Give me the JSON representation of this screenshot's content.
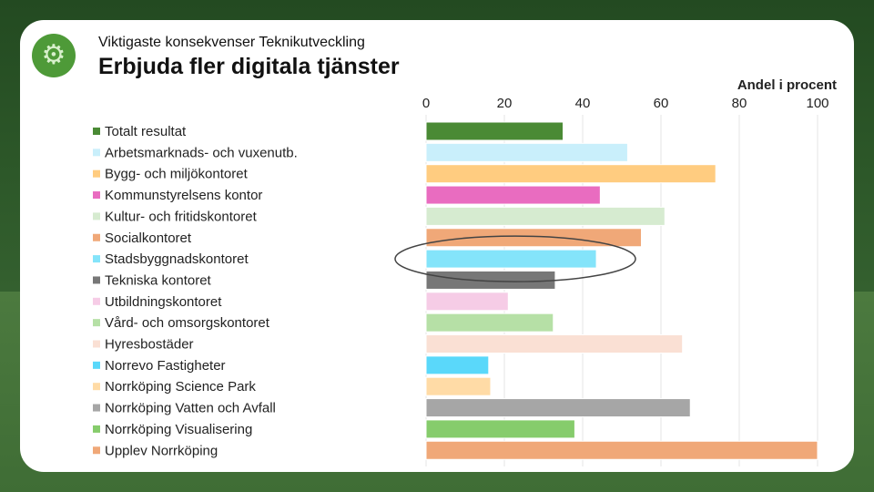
{
  "header": {
    "subtitle": "Viktigaste konsekvenser Teknikutveckling",
    "title": "Erbjuda fler digitala tjänster",
    "logo_icon": "gear-icon"
  },
  "chart_data": {
    "type": "bar",
    "orientation": "horizontal",
    "xlabel": "Andel i procent",
    "xlim": [
      0,
      100
    ],
    "xticks": [
      0,
      20,
      40,
      60,
      80,
      100
    ],
    "tick_position": "top",
    "grid": true,
    "legend_position": "left",
    "categories": [
      "Totalt resultat",
      "Arbetsmarknads- och vuxenutb.",
      "Bygg- och miljökontoret",
      "Kommunstyrelsens kontor",
      "Kultur- och fritidskontoret",
      "Socialkontoret",
      "Stadsbyggnadskontoret",
      "Tekniska kontoret",
      "Utbildningskontoret",
      "Vård- och omsorgskontoret",
      "Hyresbostäder",
      "Norrevo Fastigheter",
      "Norrköping Science Park",
      "Norrköping Vatten och Avfall",
      "Norrköping Visualisering",
      "Upplev Norrköping"
    ],
    "values": [
      35,
      51.5,
      74,
      44.5,
      61,
      55,
      43.5,
      33,
      21,
      32.5,
      65.5,
      16,
      16.5,
      67.5,
      38,
      100
    ],
    "colors": [
      "#4a8a35",
      "#c9effb",
      "#ffcc80",
      "#e96cc0",
      "#d6ebd0",
      "#f0a878",
      "#84e4fa",
      "#777777",
      "#f6cce6",
      "#b6e0a6",
      "#fae0d4",
      "#5ad8fa",
      "#ffdba6",
      "#a6a6a6",
      "#86cc6c",
      "#f0a878"
    ],
    "highlight_category": "Stadsbyggnadskontoret"
  }
}
